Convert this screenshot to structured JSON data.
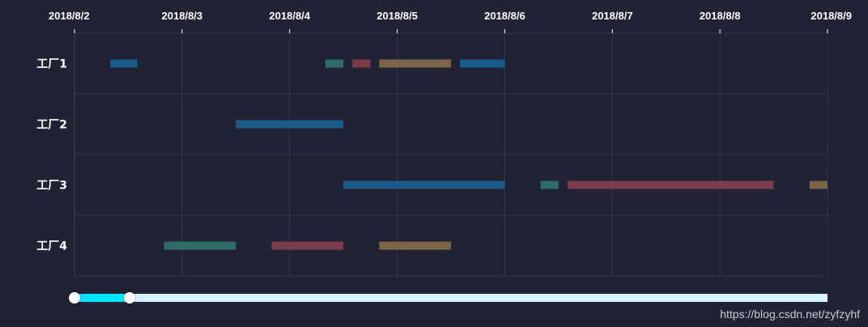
{
  "chart_data": {
    "type": "gantt",
    "x_axis": {
      "type": "time",
      "position": "top",
      "range": [
        "2018/8/2",
        "2018/8/9"
      ],
      "tick_labels": [
        "2018/8/2",
        "2018/8/3",
        "2018/8/4",
        "2018/8/5",
        "2018/8/6",
        "2018/8/7",
        "2018/8/8",
        "2018/8/9"
      ]
    },
    "categories": [
      "工厂1",
      "工厂2",
      "工厂3",
      "工厂4"
    ],
    "grid": true,
    "colors": {
      "blue": "#1a5b8a",
      "teal": "#2f6b67",
      "red": "#7a3b4a",
      "brown": "#7c6548"
    },
    "tasks": [
      {
        "category": "工厂1",
        "start": "2018/8/2 08:00",
        "end": "2018/8/2 14:00",
        "color": "blue"
      },
      {
        "category": "工厂1",
        "start": "2018/8/4 08:00",
        "end": "2018/8/4 12:00",
        "color": "teal"
      },
      {
        "category": "工厂1",
        "start": "2018/8/4 14:00",
        "end": "2018/8/4 18:00",
        "color": "red"
      },
      {
        "category": "工厂1",
        "start": "2018/8/4 20:00",
        "end": "2018/8/5 12:00",
        "color": "brown"
      },
      {
        "category": "工厂1",
        "start": "2018/8/5 14:00",
        "end": "2018/8/6 00:00",
        "color": "blue"
      },
      {
        "category": "工厂2",
        "start": "2018/8/3 12:00",
        "end": "2018/8/4 12:00",
        "color": "blue"
      },
      {
        "category": "工厂3",
        "start": "2018/8/4 12:00",
        "end": "2018/8/6 00:00",
        "color": "blue"
      },
      {
        "category": "工厂3",
        "start": "2018/8/6 08:00",
        "end": "2018/8/6 12:00",
        "color": "teal"
      },
      {
        "category": "工厂3",
        "start": "2018/8/6 14:00",
        "end": "2018/8/8 12:00",
        "color": "red"
      },
      {
        "category": "工厂3",
        "start": "2018/8/8 20:00",
        "end": "2018/8/9 00:00",
        "color": "brown"
      },
      {
        "category": "工厂4",
        "start": "2018/8/2 20:00",
        "end": "2018/8/3 12:00",
        "color": "teal"
      },
      {
        "category": "工厂4",
        "start": "2018/8/3 20:00",
        "end": "2018/8/4 12:00",
        "color": "red"
      },
      {
        "category": "工厂4",
        "start": "2018/8/4 20:00",
        "end": "2018/8/5 12:00",
        "color": "brown"
      }
    ]
  },
  "data_zoom": {
    "range_start_fraction": 0.0,
    "range_end_fraction": 0.073,
    "track_color": "#d4f3ff",
    "fill_color": "#00e5ff"
  },
  "watermark": "https://blog.csdn.net/zyfzyhf"
}
